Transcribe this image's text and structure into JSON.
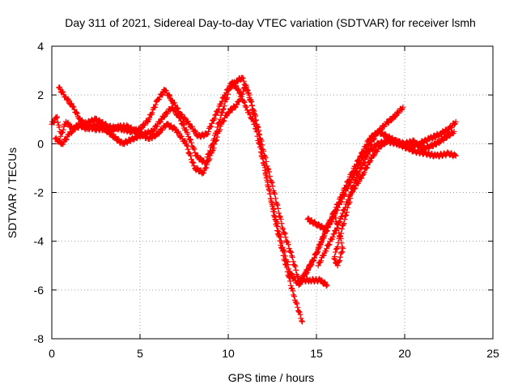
{
  "chart_data": {
    "type": "scatter",
    "title": "Day 311 of 2021, Sidereal Day-to-day VTEC variation (SDTVAR) for receiver lsmh",
    "xlabel": "GPS time / hours",
    "ylabel": "SDTVAR / TECUs",
    "xlim": [
      0,
      25
    ],
    "ylim": [
      -8,
      4
    ],
    "xticks": [
      0,
      5,
      10,
      15,
      20,
      25
    ],
    "yticks": [
      -8,
      -6,
      -4,
      -2,
      0,
      2,
      4
    ],
    "grid": true,
    "marker": "+",
    "color": "#ff0000",
    "series": [
      {
        "points": [
          [
            0.0,
            0.8
          ],
          [
            0.3,
            1.1
          ],
          [
            0.5,
            0.3
          ],
          [
            0.8,
            0.9
          ],
          [
            1.2,
            0.6
          ],
          [
            1.8,
            0.8
          ],
          [
            2.5,
            1.0
          ],
          [
            3.2,
            0.7
          ],
          [
            4.0,
            0.6
          ],
          [
            4.5,
            0.5
          ],
          [
            5.0,
            0.6
          ],
          [
            5.5,
            1.0
          ],
          [
            6.0,
            1.8
          ],
          [
            6.4,
            2.2
          ],
          [
            6.8,
            1.8
          ],
          [
            7.3,
            1.2
          ],
          [
            7.8,
            0.8
          ],
          [
            8.3,
            0.3
          ],
          [
            8.8,
            0.4
          ],
          [
            9.3,
            1.2
          ],
          [
            9.8,
            2.0
          ],
          [
            10.2,
            2.5
          ],
          [
            10.6,
            2.2
          ],
          [
            11.0,
            1.5
          ],
          [
            11.5,
            0.8
          ],
          [
            12.0,
            -0.8
          ],
          [
            12.5,
            -2.5
          ],
          [
            13.0,
            -4.0
          ],
          [
            13.5,
            -5.3
          ],
          [
            14.0,
            -5.8
          ],
          [
            14.5,
            -5.2
          ],
          [
            15.0,
            -4.5
          ],
          [
            15.5,
            -3.6
          ],
          [
            16.0,
            -2.8
          ],
          [
            16.5,
            -2.0
          ],
          [
            17.0,
            -1.2
          ],
          [
            17.5,
            -0.5
          ],
          [
            18.0,
            0.2
          ],
          [
            18.5,
            0.5
          ],
          [
            19.0,
            0.3
          ],
          [
            19.5,
            0.1
          ],
          [
            20.0,
            0.0
          ],
          [
            20.5,
            0.1
          ],
          [
            21.0,
            -0.2
          ],
          [
            21.5,
            -0.1
          ],
          [
            22.0,
            0.1
          ],
          [
            22.8,
            0.5
          ]
        ]
      },
      {
        "points": [
          [
            0.4,
            2.3
          ],
          [
            0.8,
            1.9
          ],
          [
            1.2,
            1.5
          ],
          [
            1.6,
            1.0
          ],
          [
            2.0,
            0.7
          ],
          [
            2.5,
            0.6
          ],
          [
            3.0,
            0.6
          ],
          [
            3.5,
            0.3
          ],
          [
            4.0,
            0.0
          ],
          [
            5.2,
            0.4
          ],
          [
            5.7,
            0.5
          ],
          [
            6.2,
            1.0
          ],
          [
            6.8,
            1.5
          ],
          [
            7.2,
            1.1
          ],
          [
            7.7,
            0.4
          ],
          [
            8.2,
            -0.5
          ],
          [
            8.7,
            -0.8
          ],
          [
            9.2,
            0.2
          ],
          [
            9.7,
            1.4
          ],
          [
            10.1,
            2.3
          ],
          [
            10.5,
            2.6
          ],
          [
            10.8,
            2.7
          ],
          [
            11.2,
            2.0
          ],
          [
            11.7,
            0.5
          ],
          [
            12.2,
            -1.5
          ],
          [
            12.7,
            -3.3
          ],
          [
            13.2,
            -4.8
          ],
          [
            13.7,
            -6.2
          ],
          [
            14.2,
            -7.3
          ]
        ]
      },
      {
        "points": [
          [
            0.2,
            0.2
          ],
          [
            0.6,
            0.0
          ],
          [
            1.0,
            0.4
          ],
          [
            1.5,
            0.8
          ],
          [
            2.0,
            0.6
          ],
          [
            2.6,
            0.8
          ],
          [
            3.2,
            0.5
          ],
          [
            3.8,
            0.7
          ],
          [
            4.3,
            0.7
          ],
          [
            5.5,
            0.2
          ],
          [
            6.0,
            0.4
          ],
          [
            6.5,
            0.8
          ],
          [
            7.0,
            0.6
          ],
          [
            7.6,
            0.0
          ],
          [
            8.1,
            -1.0
          ],
          [
            8.6,
            -1.2
          ],
          [
            9.1,
            -0.3
          ],
          [
            9.6,
            0.8
          ],
          [
            10.0,
            1.3
          ],
          [
            10.5,
            1.6
          ],
          [
            11.0,
            2.4
          ],
          [
            11.5,
            1.2
          ],
          [
            12.0,
            -0.3
          ],
          [
            12.6,
            -2.0
          ],
          [
            13.1,
            -3.5
          ],
          [
            13.6,
            -4.6
          ],
          [
            14.0,
            -5.6
          ],
          [
            14.6,
            -5.6
          ],
          [
            15.2,
            -5.6
          ],
          [
            15.6,
            -5.8
          ]
        ]
      },
      {
        "points": [
          [
            14.2,
            -5.5
          ],
          [
            14.8,
            -4.8
          ],
          [
            15.3,
            -4.0
          ],
          [
            15.8,
            -3.2
          ],
          [
            16.3,
            -2.5
          ],
          [
            16.9,
            -1.6
          ],
          [
            17.4,
            -0.9
          ],
          [
            17.9,
            -0.2
          ],
          [
            18.4,
            0.4
          ],
          [
            18.9,
            0.8
          ],
          [
            19.4,
            1.1
          ],
          [
            19.9,
            1.5
          ]
        ]
      },
      {
        "points": [
          [
            14.5,
            -3.1
          ],
          [
            15.0,
            -3.3
          ],
          [
            15.5,
            -3.5
          ],
          [
            15.8,
            -3.2
          ],
          [
            16.0,
            -2.8
          ],
          [
            16.5,
            -4.3
          ],
          [
            16.2,
            -5.0
          ],
          [
            16.0,
            -4.7
          ],
          [
            16.6,
            -3.1
          ],
          [
            17.0,
            -2.0
          ],
          [
            17.6,
            -1.3
          ],
          [
            18.1,
            -0.6
          ],
          [
            18.6,
            -0.1
          ],
          [
            19.2,
            0.2
          ],
          [
            19.8,
            0.0
          ],
          [
            20.5,
            -0.3
          ],
          [
            21.2,
            -0.4
          ],
          [
            21.8,
            -0.5
          ],
          [
            22.5,
            -0.4
          ],
          [
            22.9,
            -0.5
          ]
        ]
      },
      {
        "points": [
          [
            15.1,
            -5.0
          ],
          [
            15.5,
            -4.4
          ],
          [
            16.0,
            -3.7
          ],
          [
            16.4,
            -3.0
          ],
          [
            16.8,
            -2.3
          ],
          [
            17.2,
            -1.5
          ],
          [
            17.6,
            -0.9
          ],
          [
            18.0,
            -0.3
          ],
          [
            18.5,
            0.0
          ],
          [
            19.0,
            0.1
          ],
          [
            19.6,
            0.0
          ],
          [
            20.2,
            -0.2
          ],
          [
            20.8,
            0.0
          ],
          [
            21.4,
            0.2
          ],
          [
            22.0,
            0.4
          ],
          [
            22.5,
            0.6
          ],
          [
            22.9,
            0.9
          ]
        ]
      }
    ]
  }
}
